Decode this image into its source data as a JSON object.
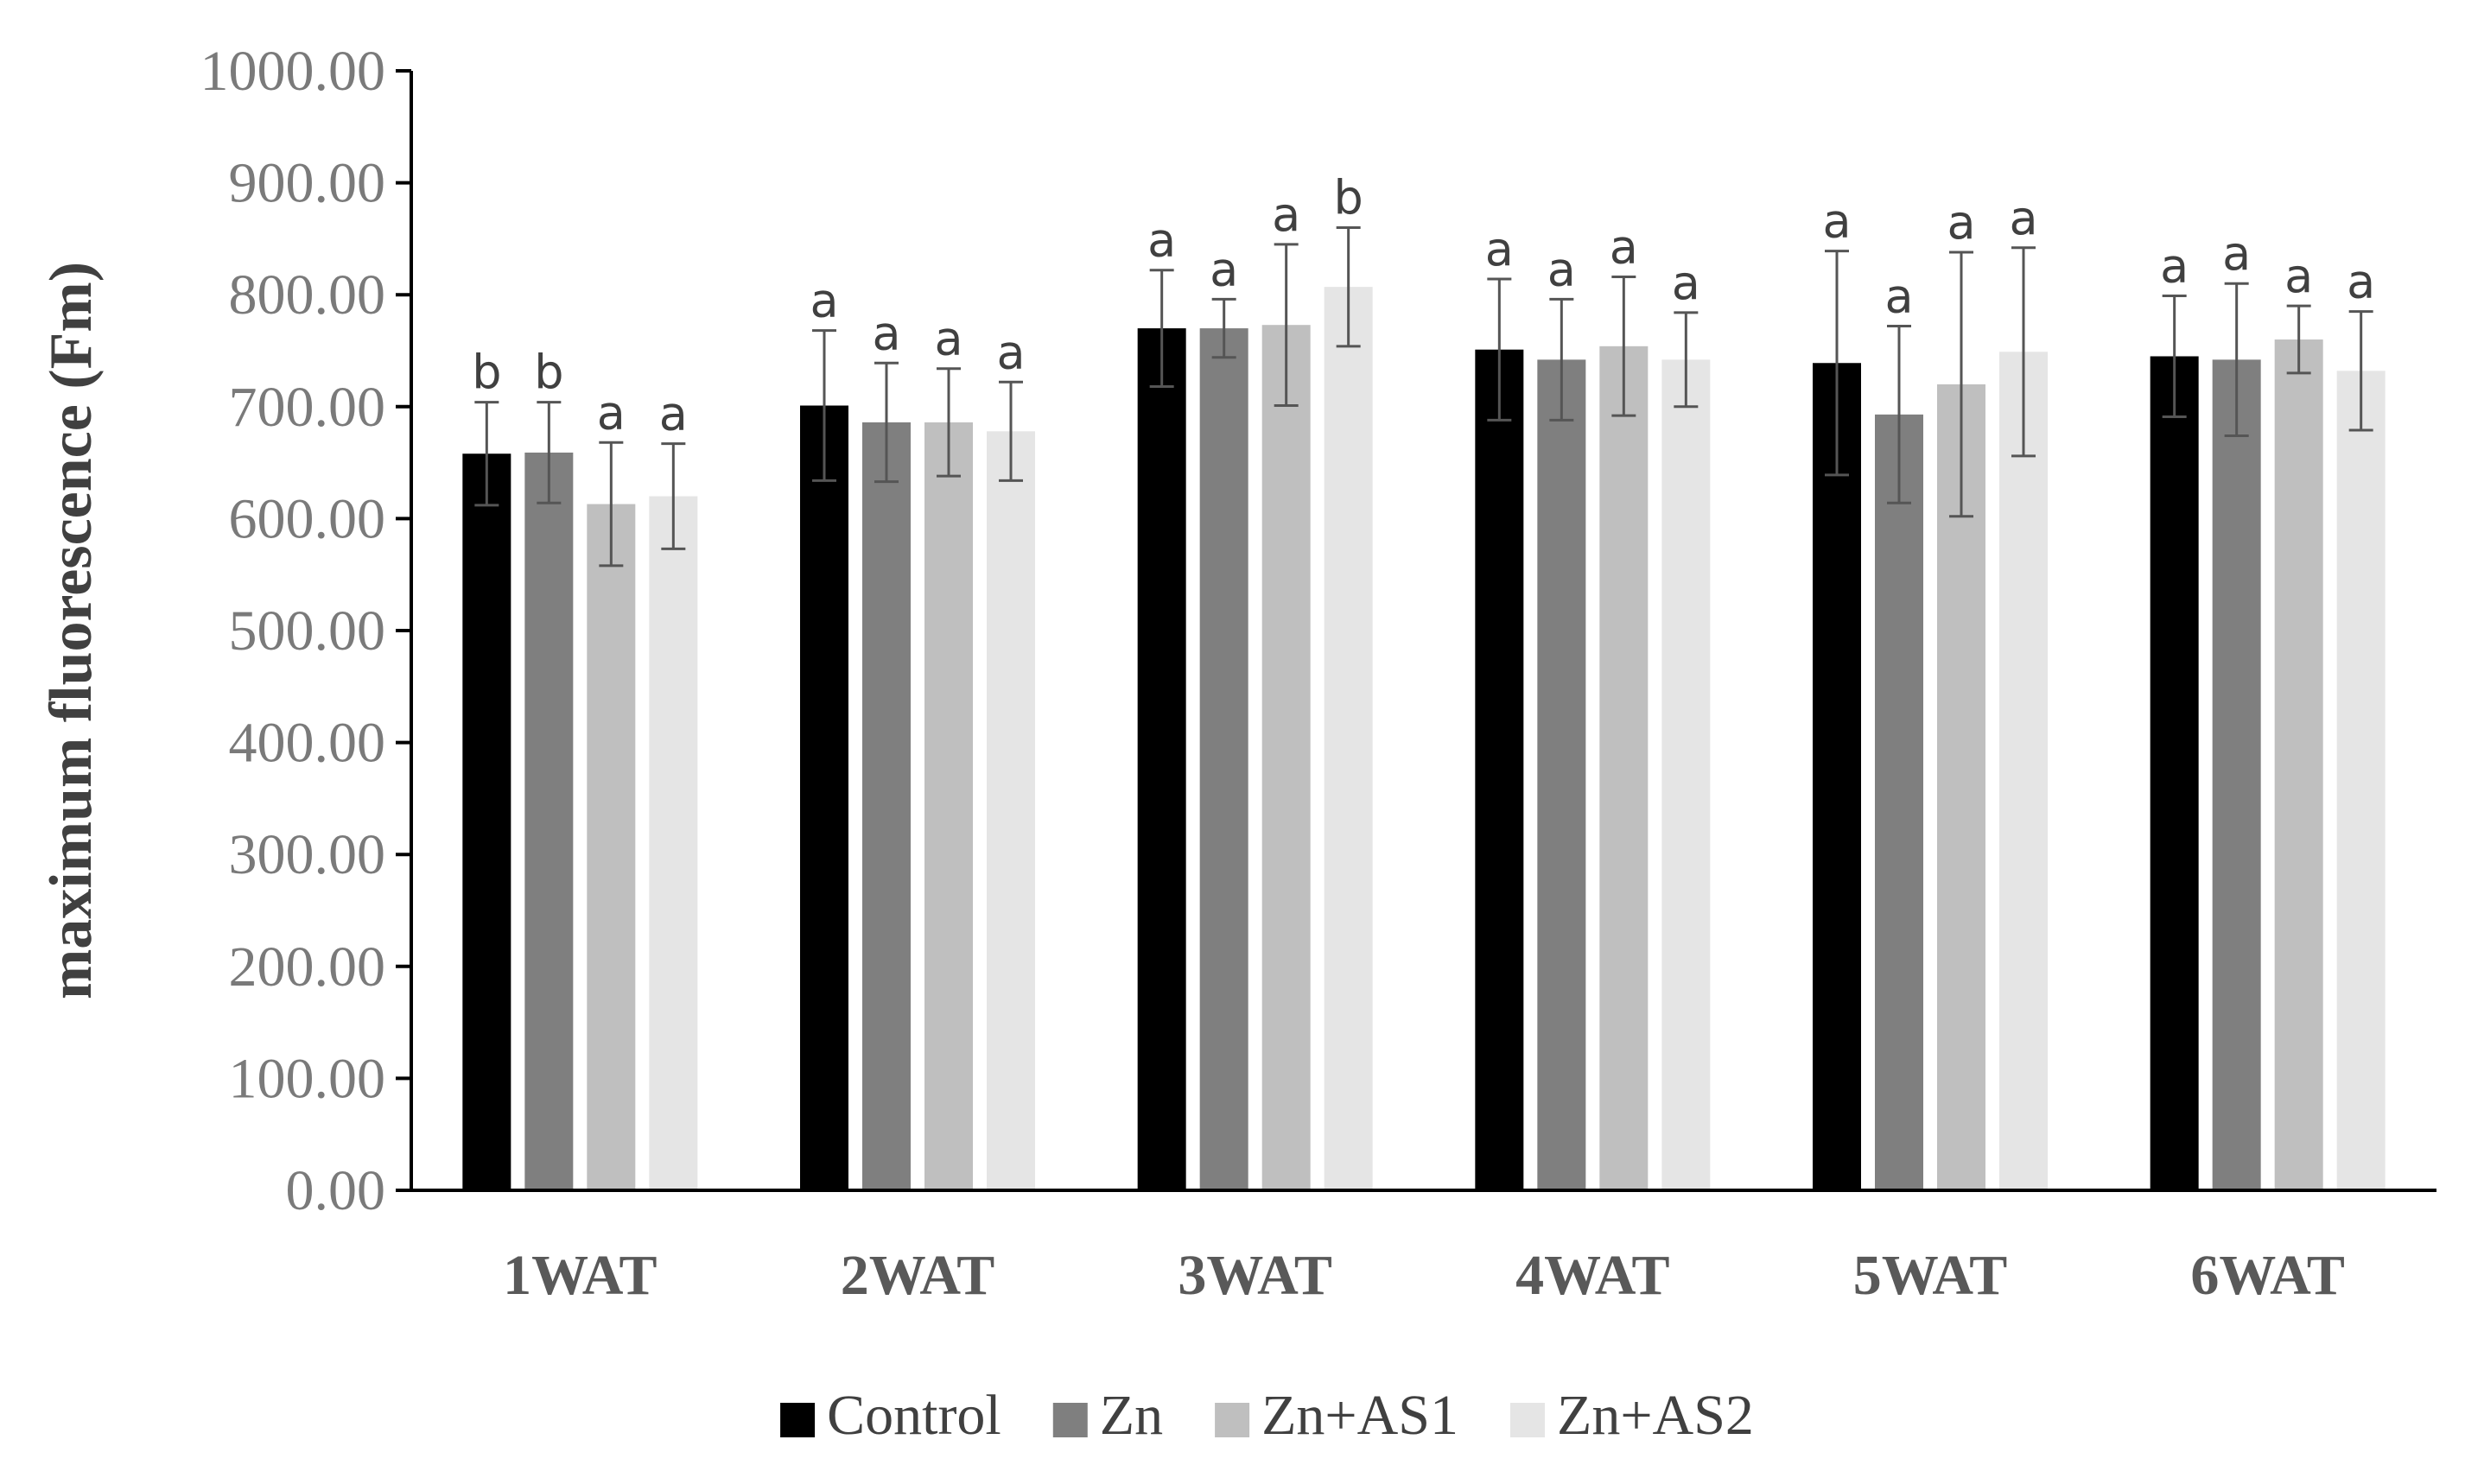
{
  "chart_data": {
    "type": "bar",
    "title": "",
    "xlabel": "",
    "ylabel": "maximum fluorescence (Fm)",
    "ylim": [
      0,
      1000
    ],
    "yticks": [
      "0.00",
      "100.00",
      "200.00",
      "300.00",
      "400.00",
      "500.00",
      "600.00",
      "700.00",
      "800.00",
      "900.00",
      "1000.00"
    ],
    "categories": [
      "1WAT",
      "2WAT",
      "3WAT",
      "4WAT",
      "5WAT",
      "6WAT"
    ],
    "legend_position": "bottom",
    "series": [
      {
        "name": "Control",
        "color": "#000000",
        "values": [
          658,
          701,
          770,
          751,
          739,
          745
        ],
        "errors": [
          46,
          67,
          52,
          63,
          100,
          54
        ],
        "letters": [
          "b",
          "a",
          "a",
          "a",
          "a",
          "a"
        ]
      },
      {
        "name": "Zn",
        "color": "#7f7f7f",
        "values": [
          659,
          686,
          770,
          742,
          693,
          742
        ],
        "errors": [
          45,
          53,
          26,
          54,
          79,
          68
        ],
        "letters": [
          "b",
          "a",
          "a",
          "a",
          "a",
          "a"
        ]
      },
      {
        "name": "Zn+AS1",
        "color": "#bfbfbf",
        "values": [
          613,
          686,
          773,
          754,
          720,
          760
        ],
        "errors": [
          55,
          48,
          72,
          62,
          118,
          30
        ],
        "letters": [
          "a",
          "a",
          "a",
          "a",
          "a",
          "a"
        ]
      },
      {
        "name": "Zn+AS2",
        "color": "#e5e5e5",
        "values": [
          620,
          678,
          807,
          742,
          749,
          732
        ],
        "errors": [
          47,
          44,
          53,
          42,
          93,
          53
        ],
        "letters": [
          "a",
          "a",
          "b",
          "a",
          "a",
          "a"
        ]
      }
    ]
  }
}
